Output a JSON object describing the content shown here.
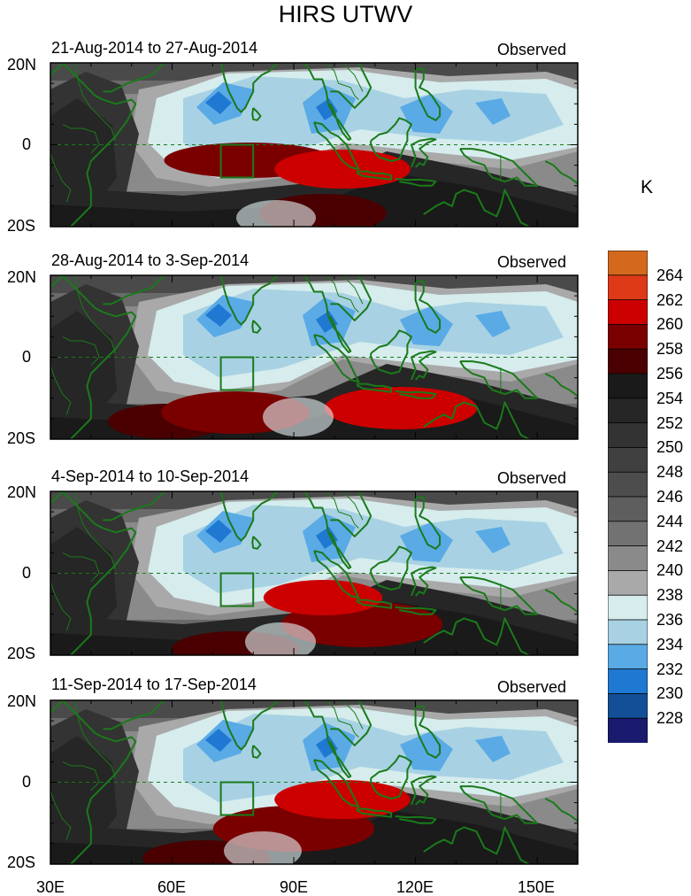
{
  "title": "HIRS UTWV",
  "colorbar": {
    "unit": "K",
    "levels": [
      "264",
      "262",
      "260",
      "258",
      "256",
      "254",
      "252",
      "250",
      "248",
      "246",
      "244",
      "242",
      "240",
      "238",
      "236",
      "234",
      "232",
      "230",
      "228"
    ],
    "colors": [
      "#d4691e",
      "#de3a18",
      "#cc0000",
      "#7a0000",
      "#4a0000",
      "#1a1a1a",
      "#262626",
      "#333333",
      "#404040",
      "#4d4d4d",
      "#5e5e5e",
      "#727272",
      "#8a8a8a",
      "#a9a9a9",
      "#d6eced",
      "#a8d2e3",
      "#5aaae6",
      "#1f78d1",
      "#134f96",
      "#1a1a6e"
    ]
  },
  "map": {
    "lat_labels": [
      "20N",
      "0",
      "20S"
    ],
    "lon_labels": [
      "30E",
      "60E",
      "90E",
      "120E",
      "150E"
    ]
  },
  "panels": [
    {
      "date_range": "21-Aug-2014 to 27-Aug-2014",
      "label": "Observed"
    },
    {
      "date_range": "28-Aug-2014 to 3-Sep-2014",
      "label": "Observed"
    },
    {
      "date_range": "4-Sep-2014 to 10-Sep-2014",
      "label": "Observed"
    },
    {
      "date_range": "11-Sep-2014 to 17-Sep-2014",
      "label": "Observed"
    }
  ]
}
